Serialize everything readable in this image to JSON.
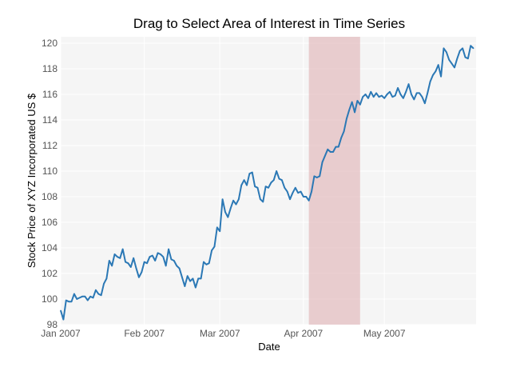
{
  "chart_data": {
    "type": "line",
    "title": "Drag to Select Area of Interest in Time Series",
    "xlabel": "Date",
    "ylabel": "Stock Price of XYZ Incorporated US $",
    "xlim": [
      "2007-01-01",
      "2007-06-04"
    ],
    "ylim": [
      98,
      120.5
    ],
    "y_ticks": [
      98,
      100,
      102,
      104,
      106,
      108,
      110,
      112,
      114,
      116,
      118,
      120
    ],
    "x_ticks": [
      {
        "date": "2007-01-01",
        "label": "Jan 2007"
      },
      {
        "date": "2007-02-01",
        "label": "Feb 2007"
      },
      {
        "date": "2007-03-01",
        "label": "Mar 2007"
      },
      {
        "date": "2007-04-01",
        "label": "Apr 2007"
      },
      {
        "date": "2007-05-01",
        "label": "May 2007"
      }
    ],
    "grid": true,
    "selection": {
      "start": "2007-04-03",
      "end": "2007-04-22",
      "color": "#dca3a8"
    },
    "series": [
      {
        "color": "#2b78b5",
        "x": [
          "2007-01-01",
          "2007-01-02",
          "2007-01-03",
          "2007-01-04",
          "2007-01-05",
          "2007-01-06",
          "2007-01-07",
          "2007-01-08",
          "2007-01-09",
          "2007-01-10",
          "2007-01-11",
          "2007-01-12",
          "2007-01-13",
          "2007-01-14",
          "2007-01-15",
          "2007-01-16",
          "2007-01-17",
          "2007-01-18",
          "2007-01-19",
          "2007-01-20",
          "2007-01-21",
          "2007-01-22",
          "2007-01-23",
          "2007-01-24",
          "2007-01-25",
          "2007-01-26",
          "2007-01-27",
          "2007-01-28",
          "2007-01-29",
          "2007-01-30",
          "2007-01-31",
          "2007-02-01",
          "2007-02-02",
          "2007-02-03",
          "2007-02-04",
          "2007-02-05",
          "2007-02-06",
          "2007-02-07",
          "2007-02-08",
          "2007-02-09",
          "2007-02-10",
          "2007-02-11",
          "2007-02-12",
          "2007-02-13",
          "2007-02-14",
          "2007-02-15",
          "2007-02-16",
          "2007-02-17",
          "2007-02-18",
          "2007-02-19",
          "2007-02-20",
          "2007-02-21",
          "2007-02-22",
          "2007-02-23",
          "2007-02-24",
          "2007-02-25",
          "2007-02-26",
          "2007-02-27",
          "2007-02-28",
          "2007-03-01",
          "2007-03-02",
          "2007-03-03",
          "2007-03-04",
          "2007-03-05",
          "2007-03-06",
          "2007-03-07",
          "2007-03-08",
          "2007-03-09",
          "2007-03-10",
          "2007-03-11",
          "2007-03-12",
          "2007-03-13",
          "2007-03-14",
          "2007-03-15",
          "2007-03-16",
          "2007-03-17",
          "2007-03-18",
          "2007-03-19",
          "2007-03-20",
          "2007-03-21",
          "2007-03-22",
          "2007-03-23",
          "2007-03-24",
          "2007-03-25",
          "2007-03-26",
          "2007-03-27",
          "2007-03-28",
          "2007-03-29",
          "2007-03-30",
          "2007-03-31",
          "2007-04-01",
          "2007-04-02",
          "2007-04-03",
          "2007-04-04",
          "2007-04-05",
          "2007-04-06",
          "2007-04-07",
          "2007-04-08",
          "2007-04-09",
          "2007-04-10",
          "2007-04-11",
          "2007-04-12",
          "2007-04-13",
          "2007-04-14",
          "2007-04-15",
          "2007-04-16",
          "2007-04-17",
          "2007-04-18",
          "2007-04-19",
          "2007-04-20",
          "2007-04-21",
          "2007-04-22",
          "2007-04-23",
          "2007-04-24",
          "2007-04-25",
          "2007-04-26",
          "2007-04-27",
          "2007-04-28",
          "2007-04-29",
          "2007-04-30",
          "2007-05-01",
          "2007-05-02",
          "2007-05-03",
          "2007-05-04",
          "2007-05-05",
          "2007-05-06",
          "2007-05-07",
          "2007-05-08",
          "2007-05-09",
          "2007-05-10",
          "2007-05-11",
          "2007-05-12",
          "2007-05-13",
          "2007-05-14",
          "2007-05-15",
          "2007-05-16",
          "2007-05-17",
          "2007-05-18",
          "2007-05-19",
          "2007-05-20",
          "2007-05-21",
          "2007-05-22",
          "2007-05-23",
          "2007-05-24",
          "2007-05-25",
          "2007-05-26",
          "2007-05-27",
          "2007-05-28",
          "2007-05-29",
          "2007-05-30",
          "2007-05-31",
          "2007-06-01",
          "2007-06-02",
          "2007-06-03"
        ],
        "y": [
          99.1,
          98.4,
          99.9,
          99.8,
          99.8,
          100.4,
          100.0,
          100.1,
          100.2,
          100.2,
          99.9,
          100.2,
          100.1,
          100.7,
          100.4,
          100.3,
          101.2,
          101.6,
          103.0,
          102.6,
          103.5,
          103.3,
          103.2,
          103.9,
          102.9,
          102.8,
          102.5,
          103.2,
          102.4,
          101.7,
          102.1,
          102.9,
          102.8,
          103.3,
          103.4,
          103.0,
          103.6,
          103.5,
          103.3,
          102.6,
          103.9,
          103.1,
          103.0,
          102.6,
          102.4,
          101.7,
          101.0,
          101.8,
          101.4,
          101.6,
          100.9,
          101.6,
          101.6,
          102.9,
          102.7,
          102.8,
          103.8,
          104.1,
          105.6,
          105.3,
          107.8,
          106.8,
          106.4,
          107.1,
          107.7,
          107.4,
          107.8,
          108.9,
          109.3,
          108.9,
          109.8,
          109.9,
          108.8,
          108.7,
          107.8,
          107.6,
          108.8,
          108.7,
          109.1,
          109.3,
          110.0,
          109.4,
          109.3,
          108.7,
          108.4,
          107.8,
          108.3,
          108.7,
          108.3,
          108.4,
          108.0,
          108.0,
          107.7,
          108.4,
          109.6,
          109.5,
          109.6,
          110.7,
          111.2,
          111.7,
          111.5,
          111.5,
          111.9,
          111.9,
          112.6,
          113.1,
          114.1,
          114.8,
          115.4,
          114.6,
          115.5,
          115.2,
          115.8,
          116.0,
          115.7,
          116.2,
          115.8,
          116.1,
          115.8,
          115.9,
          115.7,
          116.0,
          116.2,
          115.8,
          115.9,
          116.5,
          116.0,
          115.7,
          116.2,
          116.8,
          116.0,
          115.6,
          116.1,
          116.1,
          115.8,
          115.3,
          116.1,
          117.0,
          117.5,
          117.8,
          118.3,
          117.4,
          119.6,
          119.3,
          118.7,
          118.4,
          118.1,
          118.8,
          119.4,
          119.6,
          118.9,
          118.8,
          119.8,
          119.6
        ]
      }
    ]
  }
}
